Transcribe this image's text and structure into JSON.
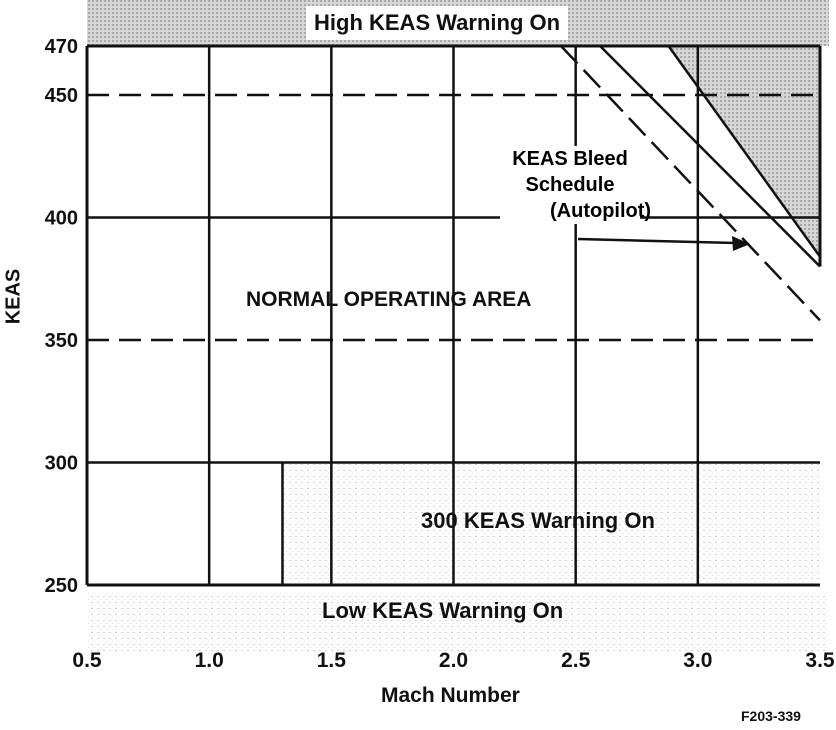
{
  "chart_data": {
    "type": "area",
    "xlabel": "Mach Number",
    "ylabel": "KEAS",
    "xlim": [
      0.5,
      3.5
    ],
    "ylim": [
      250,
      470
    ],
    "x_ticks": [
      "0.5",
      "1.0",
      "1.5",
      "2.0",
      "2.5",
      "3.0",
      "3.5"
    ],
    "y_ticks": [
      "250",
      "300",
      "350",
      "400",
      "450",
      "470"
    ],
    "reference_lines": [
      {
        "value": 450,
        "style": "dashed"
      },
      {
        "value": 350,
        "style": "dashed"
      }
    ],
    "series": [
      {
        "name": "KEAS Bleed Schedule (Autopilot)",
        "style": "dashed",
        "points": [
          [
            2.44,
            470
          ],
          [
            3.5,
            358
          ]
        ]
      },
      {
        "style": "solid",
        "points": [
          [
            2.6,
            470
          ],
          [
            3.5,
            380
          ]
        ]
      },
      {
        "style": "solid",
        "points": [
          [
            2.88,
            470
          ],
          [
            3.5,
            384
          ]
        ]
      }
    ],
    "regions": {
      "high_warning": "High KEAS Warning On",
      "normal": "NORMAL OPERATING AREA",
      "warning_300": "300 KEAS Warning On",
      "low_warning": "Low KEAS Warning On"
    },
    "region_300_starts_at_mach": 1.3,
    "annotation": [
      "KEAS Bleed",
      "Schedule",
      "(Autopilot)"
    ],
    "figure_id": "F203-339",
    "colors": {
      "ink": "#111111",
      "shade": "#b5b5b5"
    }
  }
}
